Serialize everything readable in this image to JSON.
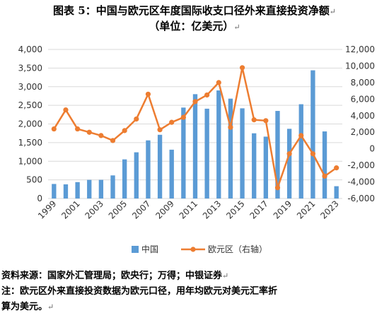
{
  "header": {
    "title_line1": "图表 5：中国与欧元区年度国际收支口径外来直接投资净额",
    "title_line2": "（单位：亿美元）"
  },
  "footer": {
    "source": "资料来源：国家外汇管理局；欧央行；万得；中银证券",
    "note_line1": "注：欧元区外来直接投资数据为欧元口径，用年均欧元对美元汇率折",
    "note_line2": "算为美元。"
  },
  "colors": {
    "china": "#5B9BD5",
    "euro": "#ED7D31"
  },
  "chart_data": {
    "type": "bar+line",
    "title": "",
    "categories": [
      "1999",
      "2000",
      "2001",
      "2002",
      "2003",
      "2004",
      "2005",
      "2006",
      "2007",
      "2008",
      "2009",
      "2010",
      "2011",
      "2012",
      "2013",
      "2014",
      "2015",
      "2016",
      "2017",
      "2018",
      "2019",
      "2020",
      "2021",
      "2022",
      "2023"
    ],
    "x_tick_labels": [
      "1999",
      "2001",
      "2003",
      "2005",
      "2007",
      "2009",
      "2011",
      "2013",
      "2015",
      "2017",
      "2019",
      "2021",
      "2023"
    ],
    "left_axis": {
      "min": 0,
      "max": 4000,
      "ticks": [
        "0",
        "500",
        "1,000",
        "1,500",
        "2,000",
        "2,500",
        "3,000",
        "3,500",
        "4,000"
      ]
    },
    "right_axis": {
      "min": -6000,
      "max": 12000,
      "ticks": [
        "-6,000",
        "-4,000",
        "-2,000",
        "0",
        "2,000",
        "4,000",
        "6,000",
        "8,000",
        "10,000",
        "12,000"
      ]
    },
    "series": [
      {
        "name": "中国",
        "type": "bar",
        "axis": "left",
        "values": [
          390,
          380,
          440,
          500,
          500,
          620,
          1050,
          1240,
          1560,
          1710,
          1310,
          2440,
          2800,
          2410,
          2900,
          2680,
          2420,
          1750,
          1660,
          2350,
          1870,
          2530,
          3440,
          1800,
          330
        ]
      },
      {
        "name": "欧元区（右轴）",
        "type": "line",
        "axis": "right",
        "values": [
          2400,
          4700,
          2400,
          2000,
          1600,
          1000,
          2200,
          3600,
          6600,
          2300,
          3200,
          3800,
          5700,
          6500,
          8000,
          2600,
          9800,
          3500,
          3400,
          -4700,
          -600,
          1600,
          -600,
          -3300,
          -2300
        ]
      }
    ],
    "legend_position": "bottom",
    "grid": true
  }
}
